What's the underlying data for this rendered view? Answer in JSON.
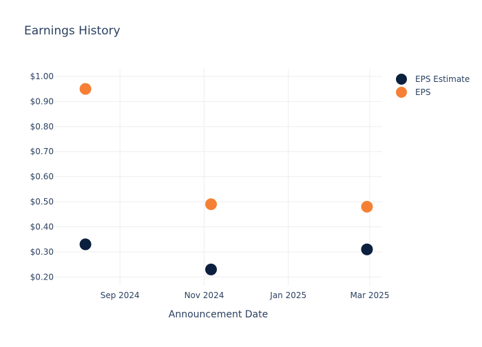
{
  "chart_data": {
    "type": "scatter",
    "title": "Earnings History",
    "xlabel": "Announcement Date",
    "ylabel": "",
    "x_ticks": [
      {
        "date": "2024-09-01",
        "label": "Sep 2024"
      },
      {
        "date": "2024-11-01",
        "label": "Nov 2024"
      },
      {
        "date": "2025-01-01",
        "label": "Jan 2025"
      },
      {
        "date": "2025-03-01",
        "label": "Mar 2025"
      }
    ],
    "y_ticks": [
      {
        "value": 0.2,
        "label": "$0.20"
      },
      {
        "value": 0.3,
        "label": "$0.30"
      },
      {
        "value": 0.4,
        "label": "$0.40"
      },
      {
        "value": 0.5,
        "label": "$0.50"
      },
      {
        "value": 0.6,
        "label": "$0.60"
      },
      {
        "value": 0.7,
        "label": "$0.70"
      },
      {
        "value": 0.8,
        "label": "$0.80"
      },
      {
        "value": 0.9,
        "label": "$0.90"
      },
      {
        "value": 1.0,
        "label": "$1.00"
      }
    ],
    "xlim": [
      "2024-07-16",
      "2025-03-10"
    ],
    "ylim": [
      0.165,
      1.03
    ],
    "grid": true,
    "legend_position": "top-right",
    "series": [
      {
        "name": "EPS Estimate",
        "color": "#0b1f3f",
        "points": [
          {
            "x": "2024-08-07",
            "y": 0.33
          },
          {
            "x": "2024-11-06",
            "y": 0.23
          },
          {
            "x": "2025-02-27",
            "y": 0.31
          }
        ]
      },
      {
        "name": "EPS",
        "color": "#f58035",
        "points": [
          {
            "x": "2024-08-07",
            "y": 0.95
          },
          {
            "x": "2024-11-06",
            "y": 0.49
          },
          {
            "x": "2025-02-27",
            "y": 0.48
          }
        ]
      }
    ]
  }
}
